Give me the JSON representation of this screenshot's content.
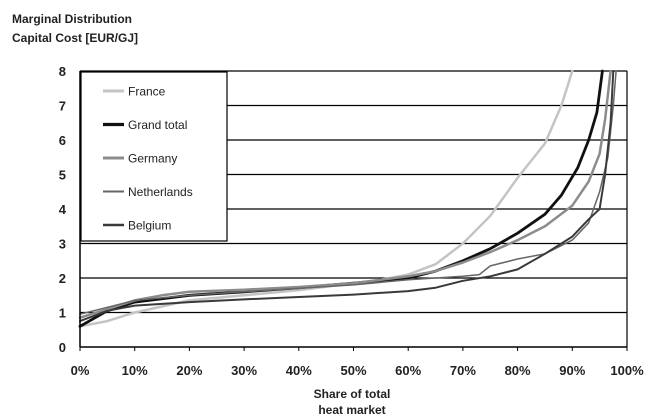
{
  "chart_data": {
    "type": "line",
    "ylabel_lines": [
      "Marginal Distribution",
      "Capital Cost [EUR/GJ]"
    ],
    "xlabel_lines": [
      "Share of total",
      "heat market"
    ],
    "xlim": [
      0,
      1
    ],
    "ylim": [
      0,
      8
    ],
    "x_ticks": [
      "0%",
      "10%",
      "20%",
      "30%",
      "40%",
      "50%",
      "60%",
      "70%",
      "80%",
      "90%",
      "100%"
    ],
    "y_ticks": [
      "0",
      "1",
      "2",
      "3",
      "4",
      "5",
      "6",
      "7",
      "8"
    ],
    "grid": "horizontal",
    "legend_position": "top-left",
    "series": [
      {
        "name": "France",
        "color": "#c4c4c4",
        "width": 2.5,
        "points": [
          [
            0.0,
            0.6
          ],
          [
            0.05,
            0.75
          ],
          [
            0.1,
            1.0
          ],
          [
            0.2,
            1.35
          ],
          [
            0.3,
            1.5
          ],
          [
            0.4,
            1.65
          ],
          [
            0.5,
            1.85
          ],
          [
            0.55,
            1.95
          ],
          [
            0.6,
            2.1
          ],
          [
            0.65,
            2.4
          ],
          [
            0.7,
            3.0
          ],
          [
            0.75,
            3.8
          ],
          [
            0.8,
            4.9
          ],
          [
            0.85,
            5.9
          ],
          [
            0.88,
            7.0
          ],
          [
            0.9,
            8.0
          ]
        ]
      },
      {
        "name": "Grand total",
        "color": "#111111",
        "width": 2.8,
        "points": [
          [
            0.0,
            0.6
          ],
          [
            0.05,
            1.05
          ],
          [
            0.1,
            1.3
          ],
          [
            0.2,
            1.5
          ],
          [
            0.3,
            1.6
          ],
          [
            0.4,
            1.72
          ],
          [
            0.5,
            1.85
          ],
          [
            0.6,
            2.0
          ],
          [
            0.65,
            2.2
          ],
          [
            0.7,
            2.5
          ],
          [
            0.75,
            2.85
          ],
          [
            0.8,
            3.3
          ],
          [
            0.85,
            3.85
          ],
          [
            0.88,
            4.4
          ],
          [
            0.91,
            5.2
          ],
          [
            0.93,
            6.0
          ],
          [
            0.945,
            6.8
          ],
          [
            0.955,
            8.0
          ]
        ]
      },
      {
        "name": "Germany",
        "color": "#8c8c8c",
        "width": 2.5,
        "points": [
          [
            0.0,
            0.85
          ],
          [
            0.05,
            1.1
          ],
          [
            0.1,
            1.35
          ],
          [
            0.15,
            1.5
          ],
          [
            0.2,
            1.6
          ],
          [
            0.3,
            1.66
          ],
          [
            0.4,
            1.74
          ],
          [
            0.5,
            1.85
          ],
          [
            0.6,
            2.05
          ],
          [
            0.65,
            2.2
          ],
          [
            0.7,
            2.45
          ],
          [
            0.75,
            2.75
          ],
          [
            0.8,
            3.1
          ],
          [
            0.85,
            3.5
          ],
          [
            0.9,
            4.1
          ],
          [
            0.93,
            4.8
          ],
          [
            0.95,
            5.6
          ],
          [
            0.96,
            6.6
          ],
          [
            0.97,
            8.0
          ]
        ]
      },
      {
        "name": "Netherlands",
        "color": "#666666",
        "width": 1.5,
        "points": [
          [
            0.0,
            0.95
          ],
          [
            0.05,
            1.15
          ],
          [
            0.1,
            1.35
          ],
          [
            0.2,
            1.5
          ],
          [
            0.3,
            1.6
          ],
          [
            0.4,
            1.7
          ],
          [
            0.5,
            1.8
          ],
          [
            0.6,
            1.95
          ],
          [
            0.7,
            2.05
          ],
          [
            0.73,
            2.1
          ],
          [
            0.75,
            2.35
          ],
          [
            0.8,
            2.55
          ],
          [
            0.85,
            2.7
          ],
          [
            0.9,
            3.1
          ],
          [
            0.93,
            3.6
          ],
          [
            0.95,
            4.5
          ],
          [
            0.965,
            5.5
          ],
          [
            0.975,
            7.0
          ],
          [
            0.98,
            8.0
          ]
        ]
      },
      {
        "name": "Belgium",
        "color": "#3a3a3a",
        "width": 2.0,
        "points": [
          [
            0.0,
            0.75
          ],
          [
            0.05,
            1.05
          ],
          [
            0.1,
            1.2
          ],
          [
            0.2,
            1.3
          ],
          [
            0.3,
            1.38
          ],
          [
            0.4,
            1.45
          ],
          [
            0.5,
            1.52
          ],
          [
            0.6,
            1.62
          ],
          [
            0.65,
            1.72
          ],
          [
            0.7,
            1.92
          ],
          [
            0.75,
            2.05
          ],
          [
            0.8,
            2.25
          ],
          [
            0.85,
            2.7
          ],
          [
            0.9,
            3.2
          ],
          [
            0.93,
            3.7
          ],
          [
            0.95,
            4.0
          ],
          [
            0.96,
            5.0
          ],
          [
            0.97,
            6.5
          ],
          [
            0.975,
            8.0
          ]
        ]
      }
    ]
  }
}
